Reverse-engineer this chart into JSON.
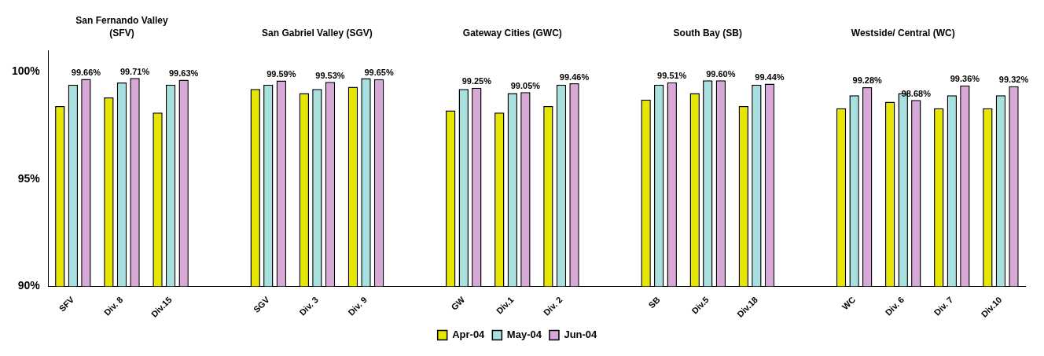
{
  "chart_data": {
    "type": "bar",
    "categories": [
      "SFV",
      "Div. 8",
      "Div.15",
      null,
      "SGV",
      "Div. 3",
      "Div. 9",
      null,
      "GW",
      "Div.1",
      "Div. 2",
      null,
      "SB",
      "Div.5",
      "Div.18",
      null,
      "WC",
      "Div. 6",
      "Div. 7",
      "Div.10"
    ],
    "series": [
      {
        "name": "Apr-04",
        "color": "#e6e600",
        "values": [
          98.4,
          98.8,
          98.1,
          null,
          99.2,
          99.0,
          99.3,
          null,
          98.2,
          98.1,
          98.4,
          null,
          98.7,
          99.0,
          98.4,
          null,
          98.3,
          98.6,
          98.3,
          98.3
        ]
      },
      {
        "name": "May-04",
        "color": "#a8e0e0",
        "values": [
          99.4,
          99.5,
          99.4,
          null,
          99.4,
          99.2,
          99.7,
          null,
          99.2,
          99.0,
          99.4,
          null,
          99.4,
          99.6,
          99.4,
          null,
          98.9,
          99.0,
          98.9,
          98.9
        ]
      },
      {
        "name": "Jun-04",
        "color": "#d8a8d8",
        "values": [
          99.66,
          99.71,
          99.63,
          null,
          99.59,
          99.53,
          99.65,
          null,
          99.25,
          99.05,
          99.46,
          null,
          99.51,
          99.6,
          99.44,
          null,
          99.28,
          98.68,
          99.36,
          99.32
        ],
        "value_labels": [
          "99.66%",
          "99.71%",
          "99.63%",
          null,
          "99.59%",
          "99.53%",
          "99.65%",
          null,
          "99.25%",
          "99.05%",
          "99.46%",
          null,
          "99.51%",
          "99.60%",
          "99.44%",
          null,
          "99.28%",
          "98.68%",
          "99.36%",
          "99.32%"
        ]
      }
    ],
    "annotations": [
      "San Fernando Valley (SFV)",
      "San Gabriel Valley (SGV)",
      "Gateway Cities (GWC)",
      "South Bay (SB)",
      "Westside/ Central (WC)"
    ],
    "ylim": [
      90,
      101
    ],
    "yticks": [
      {
        "value": 90,
        "label": "90%"
      },
      {
        "value": 95,
        "label": "95%"
      },
      {
        "value": 100,
        "label": "100%"
      }
    ],
    "grid": false,
    "legend": "bottom"
  }
}
